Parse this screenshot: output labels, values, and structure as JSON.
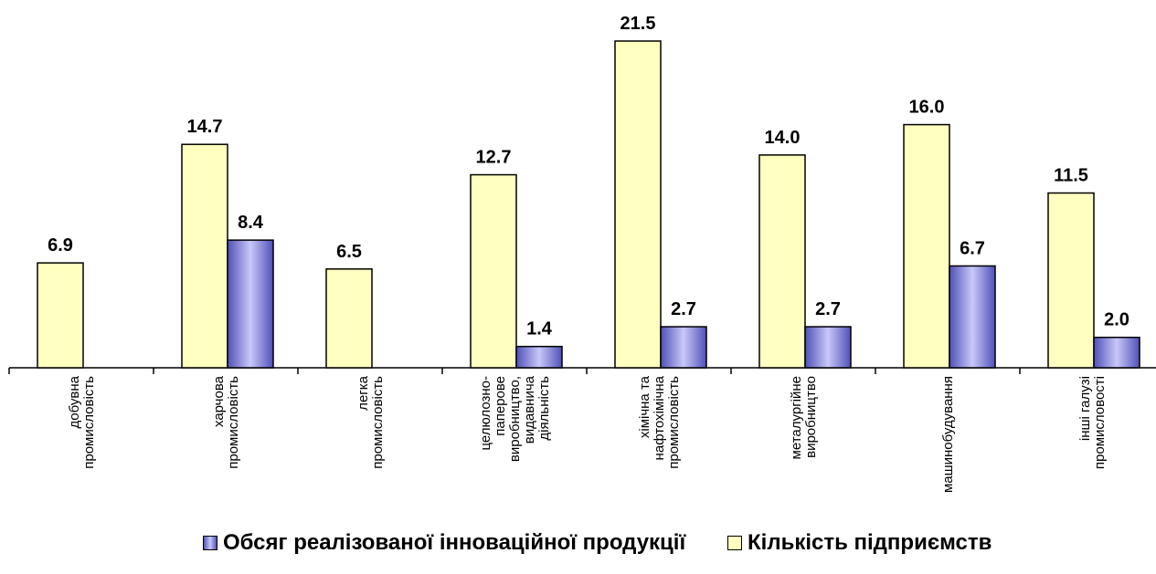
{
  "chart_data": {
    "type": "bar",
    "categories": [
      [
        "добувна",
        "промисловість"
      ],
      [
        "харчова",
        "промисловість"
      ],
      [
        "легка",
        "промисловість"
      ],
      [
        "целюлозно-",
        "паперове",
        "виробництво,",
        "видавнича",
        "діяльність"
      ],
      [
        "хімічна та",
        "нафтохімічна",
        "промисловість"
      ],
      [
        "металургійне",
        "виробництво"
      ],
      [
        "машинобудування"
      ],
      [
        "інші галузі",
        "промисловості"
      ]
    ],
    "series": [
      {
        "name": "Кількість підприємств",
        "color": "#ffffc0",
        "values": [
          6.9,
          14.7,
          6.5,
          12.7,
          21.5,
          14.0,
          16.0,
          11.5
        ],
        "labels": [
          "6.9",
          "14.7",
          "6.5",
          "12.7",
          "21.5",
          "14.0",
          "16.0",
          "11.5"
        ]
      },
      {
        "name": "Обсяг реалізованої інноваційної продукції",
        "color": "#8a8ae0",
        "values": [
          null,
          8.4,
          null,
          1.4,
          2.7,
          2.7,
          6.7,
          2.0
        ],
        "labels": [
          "",
          "8.4",
          "",
          "1.4",
          "2.7",
          "2.7",
          "6.7",
          "2.0"
        ]
      }
    ],
    "ylim": [
      0,
      23
    ],
    "grid": false,
    "legend_position": "bottom",
    "legend_order": [
      "Обсяг реалізованої інноваційної продукції",
      "Кількість підприємств"
    ]
  }
}
